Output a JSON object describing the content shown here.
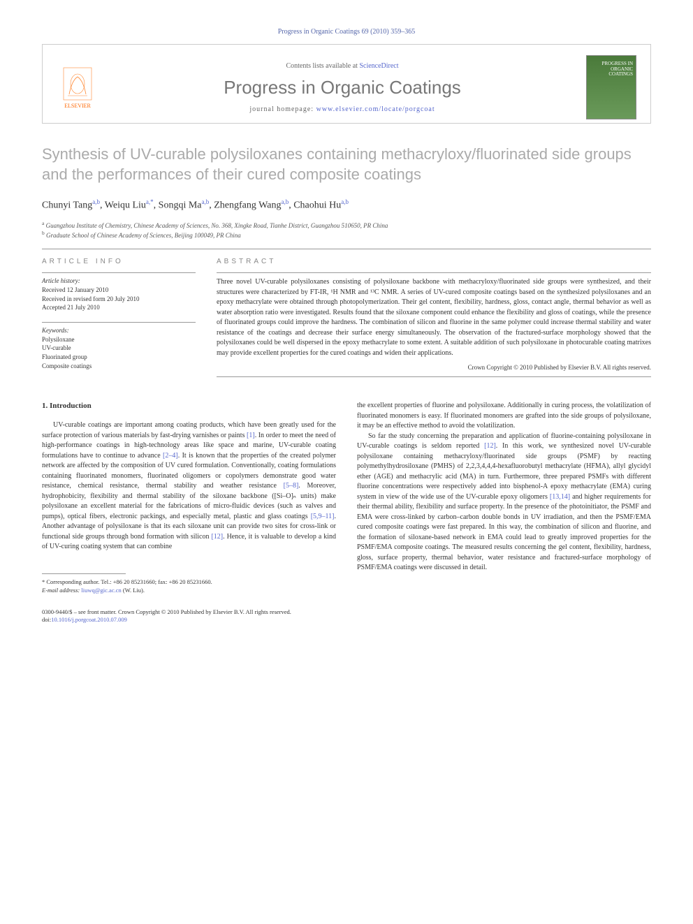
{
  "citation": "Progress in Organic Coatings 69 (2010) 359–365",
  "header": {
    "contents_prefix": "Contents lists available at ",
    "contents_link": "ScienceDirect",
    "journal_title": "Progress in Organic Coatings",
    "homepage_prefix": "journal homepage: ",
    "homepage_url": "www.elsevier.com/locate/porgcoat",
    "publisher": "ELSEVIER",
    "cover_label_1": "PROGRESS IN",
    "cover_label_2": "ORGANIC",
    "cover_label_3": "COATINGS"
  },
  "title": "Synthesis of UV-curable polysiloxanes containing methacryloxy/fluorinated side groups and the performances of their cured composite coatings",
  "authors": [
    {
      "name": "Chunyi Tang",
      "aff": "a,b"
    },
    {
      "name": "Weiqu Liu",
      "aff": "a,*"
    },
    {
      "name": "Songqi Ma",
      "aff": "a,b"
    },
    {
      "name": "Zhengfang Wang",
      "aff": "a,b"
    },
    {
      "name": "Chaohui Hu",
      "aff": "a,b"
    }
  ],
  "affiliations": {
    "a": "Guangzhou Institute of Chemistry, Chinese Academy of Sciences, No. 368, Xingke Road, Tianhe District, Guangzhou 510650, PR China",
    "b": "Graduate School of Chinese Academy of Sciences, Beijing 100049, PR China"
  },
  "article_info": {
    "heading": "ARTICLE INFO",
    "history_label": "Article history:",
    "received": "Received 12 January 2010",
    "revised": "Received in revised form 20 July 2010",
    "accepted": "Accepted 21 July 2010",
    "keywords_label": "Keywords:",
    "keywords": [
      "Polysiloxane",
      "UV-curable",
      "Fluorinated group",
      "Composite coatings"
    ]
  },
  "abstract": {
    "heading": "ABSTRACT",
    "text": "Three novel UV-curable polysiloxanes consisting of polysiloxane backbone with methacryloxy/fluorinated side groups were synthesized, and their structures were characterized by FT-IR, ¹H NMR and ¹³C NMR. A series of UV-cured composite coatings based on the synthesized polysiloxanes and an epoxy methacrylate were obtained through photopolymerization. Their gel content, flexibility, hardness, gloss, contact angle, thermal behavior as well as water absorption ratio were investigated. Results found that the siloxane component could enhance the flexibility and gloss of coatings, while the presence of fluorinated groups could improve the hardness. The combination of silicon and fluorine in the same polymer could increase thermal stability and water resistance of the coatings and decrease their surface energy simultaneously. The observation of the fractured-surface morphology showed that the polysiloxanes could be well dispersed in the epoxy methacrylate to some extent. A suitable addition of such polysiloxane in photocurable coating matrixes may provide excellent properties for the cured coatings and widen their applications.",
    "copyright": "Crown Copyright © 2010 Published by Elsevier B.V. All rights reserved."
  },
  "section1": {
    "num": "1.",
    "title": "Introduction"
  },
  "body": {
    "p1_a": "UV-curable coatings are important among coating products, which have been greatly used for the surface protection of various materials by fast-drying varnishes or paints ",
    "r1": "[1]",
    "p1_b": ". In order to meet the need of high-performance coatings in high-technology areas like space and marine, UV-curable coating formulations have to continue to advance ",
    "r2": "[2–4]",
    "p1_c": ". It is known that the properties of the created polymer network are affected by the composition of UV cured formulation. Conventionally, coating formulations containing fluorinated monomers, fluorinated oligomers or copolymers demonstrate good water resistance, chemical resistance, thermal stability and weather resistance ",
    "r3": "[5–8]",
    "p1_d": ". Moreover, hydrophobicity, flexibility and thermal stability of the siloxane backbone ([Si–O]ₙ units) make polysiloxane an excellent material for the fabrications of micro-fluidic devices (such as valves and pumps), optical fibers, electronic packings, and especially metal, plastic and glass coatings ",
    "r4": "[5,9–11]",
    "p1_e": ". Another advantage of polysiloxane is that its each siloxane unit can provide two sites for cross-link or functional side groups through bond formation with silicon ",
    "r5": "[12]",
    "p1_f": ". Hence, it is valuable to develop a kind of UV-curing coating system that can combine",
    "p2_a": "the excellent properties of fluorine and polysiloxane. Additionally in curing process, the volatilization of fluorinated monomers is easy. If fluorinated monomers are grafted into the side groups of polysiloxane, it may be an effective method to avoid the volatilization.",
    "p3_a": "So far the study concerning the preparation and application of fluorine-containing polysiloxane in UV-curable coatings is seldom reported ",
    "r6": "[12]",
    "p3_b": ". In this work, we synthesized novel UV-curable polysiloxane containing methacryloxy/fluorinated side groups (PSMF) by reacting polymethylhydrosiloxane (PMHS) of 2,2,3,4,4,4-hexafluorobutyl methacrylate (HFMA), allyl glycidyl ether (AGE) and methacrylic acid (MA) in turn. Furthermore, three prepared PSMFs with different fluorine concentrations were respectively added into bisphenol-A epoxy methacrylate (EMA) curing system in view of the wide use of the UV-curable epoxy oligomers ",
    "r7": "[13,14]",
    "p3_c": " and higher requirements for their thermal ability, flexibility and surface property. In the presence of the photoinitiator, the PSMF and EMA were cross-linked by carbon–carbon double bonds in UV irradiation, and then the PSMF/EMA cured composite coatings were fast prepared. In this way, the combination of silicon and fluorine, and the formation of siloxane-based network in EMA could lead to greatly improved properties for the PSMF/EMA composite coatings. The measured results concerning the gel content, flexibility, hardness, gloss, surface property, thermal behavior, water resistance and fractured-surface morphology of PSMF/EMA coatings were discussed in detail."
  },
  "footnote": {
    "corr_label": "* Corresponding author. Tel.: +86 20 85231660; fax: +86 20 85231660.",
    "email_label": "E-mail address: ",
    "email": "liuwq@gic.ac.cn",
    "email_who": " (W. Liu)."
  },
  "footer": {
    "line1": "0300-9440/$ – see front matter. Crown Copyright © 2010 Published by Elsevier B.V. All rights reserved.",
    "doi_label": "doi:",
    "doi": "10.1016/j.porgcoat.2010.07.009"
  },
  "colors": {
    "link": "#5566cc",
    "title_gray": "#aaaaaa",
    "journal_gray": "#777777",
    "orange": "#ff6600"
  }
}
